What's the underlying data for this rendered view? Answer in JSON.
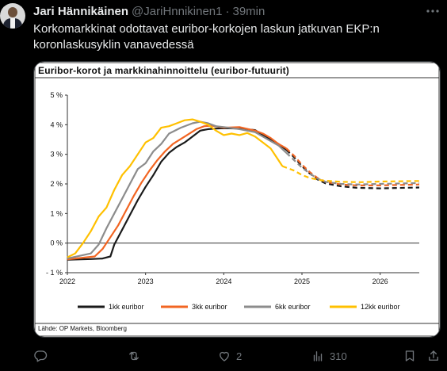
{
  "tweet": {
    "author_name": "Jari Hännikäinen",
    "handle": "@JariHnnikinen1",
    "separator": "·",
    "time": "39min",
    "more_icon": "more-dots-icon",
    "text": "Korkomarkkinat odottavat euribor-korkojen laskun jatkuvan EKP:n koronlaskusyklin vanavedessä"
  },
  "chart_card": {
    "title": "Euribor-korot ja markkinahinnoittelu (euribor-futuurit)",
    "source": "Lähde: OP Markets, Bloomberg"
  },
  "chart_data": {
    "type": "line",
    "title": "Euribor-korot ja markkinahinnoittelu (euribor-futuurit)",
    "xlabel": "",
    "ylabel": "",
    "ylim": [
      -1,
      5
    ],
    "xlim": [
      2022.0,
      2026.5
    ],
    "x_ticks": [
      2022,
      2023,
      2024,
      2025,
      2026
    ],
    "x_tick_labels": [
      "2022",
      "2023",
      "2024",
      "2025",
      "2026"
    ],
    "y_ticks": [
      -1,
      0,
      1,
      2,
      3,
      4,
      5
    ],
    "y_tick_labels": [
      "- 1 %",
      "0 %",
      "1 %",
      "2 %",
      "3 %",
      "4 %",
      "5 %"
    ],
    "grid": false,
    "legend_position": "bottom",
    "forecast_style": "dashed",
    "series": [
      {
        "name": "1kk euribor",
        "color": "#1a1a1a",
        "actual": [
          [
            2022.0,
            -0.56
          ],
          [
            2022.3,
            -0.54
          ],
          [
            2022.45,
            -0.52
          ],
          [
            2022.55,
            -0.45
          ],
          [
            2022.6,
            -0.05
          ],
          [
            2022.7,
            0.45
          ],
          [
            2022.8,
            0.95
          ],
          [
            2022.9,
            1.45
          ],
          [
            2023.0,
            1.9
          ],
          [
            2023.1,
            2.3
          ],
          [
            2023.2,
            2.75
          ],
          [
            2023.3,
            3.05
          ],
          [
            2023.4,
            3.25
          ],
          [
            2023.5,
            3.4
          ],
          [
            2023.6,
            3.6
          ],
          [
            2023.7,
            3.8
          ],
          [
            2023.8,
            3.85
          ],
          [
            2023.9,
            3.87
          ],
          [
            2024.0,
            3.88
          ],
          [
            2024.2,
            3.87
          ],
          [
            2024.4,
            3.82
          ],
          [
            2024.5,
            3.65
          ],
          [
            2024.6,
            3.5
          ],
          [
            2024.7,
            3.35
          ],
          [
            2024.8,
            3.15
          ]
        ],
        "forecast": [
          [
            2024.8,
            3.15
          ],
          [
            2024.9,
            2.9
          ],
          [
            2025.0,
            2.6
          ],
          [
            2025.1,
            2.35
          ],
          [
            2025.2,
            2.15
          ],
          [
            2025.3,
            2.02
          ],
          [
            2025.5,
            1.92
          ],
          [
            2025.7,
            1.87
          ],
          [
            2026.0,
            1.85
          ],
          [
            2026.5,
            1.88
          ]
        ]
      },
      {
        "name": "3kk euribor",
        "color": "#f26522",
        "actual": [
          [
            2022.0,
            -0.55
          ],
          [
            2022.35,
            -0.45
          ],
          [
            2022.45,
            -0.2
          ],
          [
            2022.55,
            0.2
          ],
          [
            2022.65,
            0.6
          ],
          [
            2022.75,
            1.1
          ],
          [
            2022.85,
            1.6
          ],
          [
            2022.95,
            2.05
          ],
          [
            2023.05,
            2.45
          ],
          [
            2023.15,
            2.8
          ],
          [
            2023.25,
            3.1
          ],
          [
            2023.35,
            3.35
          ],
          [
            2023.5,
            3.6
          ],
          [
            2023.65,
            3.85
          ],
          [
            2023.75,
            3.95
          ],
          [
            2023.85,
            3.97
          ],
          [
            2024.0,
            3.9
          ],
          [
            2024.2,
            3.92
          ],
          [
            2024.4,
            3.8
          ],
          [
            2024.5,
            3.7
          ],
          [
            2024.6,
            3.55
          ],
          [
            2024.7,
            3.35
          ],
          [
            2024.8,
            3.2
          ]
        ],
        "forecast": [
          [
            2024.8,
            3.2
          ],
          [
            2024.9,
            2.95
          ],
          [
            2025.0,
            2.65
          ],
          [
            2025.1,
            2.4
          ],
          [
            2025.2,
            2.2
          ],
          [
            2025.3,
            2.07
          ],
          [
            2025.5,
            1.98
          ],
          [
            2025.7,
            1.95
          ],
          [
            2026.0,
            1.95
          ],
          [
            2026.5,
            1.98
          ]
        ]
      },
      {
        "name": "6kk euribor",
        "color": "#8c8c8c",
        "actual": [
          [
            2022.0,
            -0.52
          ],
          [
            2022.3,
            -0.35
          ],
          [
            2022.4,
            -0.05
          ],
          [
            2022.5,
            0.5
          ],
          [
            2022.6,
            1.0
          ],
          [
            2022.7,
            1.5
          ],
          [
            2022.8,
            2.0
          ],
          [
            2022.9,
            2.5
          ],
          [
            2023.0,
            2.7
          ],
          [
            2023.1,
            3.1
          ],
          [
            2023.2,
            3.35
          ],
          [
            2023.3,
            3.7
          ],
          [
            2023.45,
            3.9
          ],
          [
            2023.6,
            4.05
          ],
          [
            2023.7,
            4.1
          ],
          [
            2023.8,
            4.05
          ],
          [
            2023.9,
            3.95
          ],
          [
            2024.0,
            3.92
          ],
          [
            2024.2,
            3.85
          ],
          [
            2024.4,
            3.75
          ],
          [
            2024.5,
            3.6
          ],
          [
            2024.6,
            3.45
          ],
          [
            2024.7,
            3.3
          ],
          [
            2024.8,
            3.05
          ]
        ],
        "forecast": [
          [
            2024.8,
            3.05
          ],
          [
            2024.9,
            2.8
          ],
          [
            2025.0,
            2.55
          ],
          [
            2025.1,
            2.35
          ],
          [
            2025.2,
            2.18
          ],
          [
            2025.3,
            2.07
          ],
          [
            2025.5,
            2.0
          ],
          [
            2025.7,
            1.98
          ],
          [
            2026.0,
            2.0
          ],
          [
            2026.5,
            2.03
          ]
        ]
      },
      {
        "name": "12kk euribor",
        "color": "#ffc000",
        "actual": [
          [
            2022.0,
            -0.48
          ],
          [
            2022.1,
            -0.35
          ],
          [
            2022.2,
            0.0
          ],
          [
            2022.3,
            0.4
          ],
          [
            2022.4,
            0.9
          ],
          [
            2022.5,
            1.2
          ],
          [
            2022.6,
            1.8
          ],
          [
            2022.7,
            2.3
          ],
          [
            2022.8,
            2.6
          ],
          [
            2022.9,
            3.0
          ],
          [
            2023.0,
            3.4
          ],
          [
            2023.1,
            3.55
          ],
          [
            2023.2,
            3.9
          ],
          [
            2023.3,
            3.95
          ],
          [
            2023.4,
            4.05
          ],
          [
            2023.5,
            4.15
          ],
          [
            2023.6,
            4.18
          ],
          [
            2023.7,
            4.1
          ],
          [
            2023.8,
            4.0
          ],
          [
            2023.9,
            3.8
          ],
          [
            2024.0,
            3.65
          ],
          [
            2024.1,
            3.7
          ],
          [
            2024.2,
            3.65
          ],
          [
            2024.3,
            3.72
          ],
          [
            2024.4,
            3.6
          ],
          [
            2024.5,
            3.4
          ],
          [
            2024.6,
            3.2
          ],
          [
            2024.7,
            2.8
          ],
          [
            2024.75,
            2.6
          ]
        ],
        "forecast": [
          [
            2024.75,
            2.6
          ],
          [
            2024.9,
            2.45
          ],
          [
            2025.0,
            2.3
          ],
          [
            2025.1,
            2.2
          ],
          [
            2025.25,
            2.12
          ],
          [
            2025.5,
            2.07
          ],
          [
            2025.75,
            2.06
          ],
          [
            2026.0,
            2.08
          ],
          [
            2026.5,
            2.1
          ]
        ]
      }
    ]
  },
  "actions": {
    "reply": {
      "icon": "reply-icon",
      "count": ""
    },
    "retweet": {
      "icon": "retweet-icon",
      "count": ""
    },
    "like": {
      "icon": "heart-icon",
      "count": "2"
    },
    "views": {
      "icon": "views-icon",
      "count": "310"
    },
    "bookmark": {
      "icon": "bookmark-icon",
      "count": ""
    },
    "share": {
      "icon": "share-icon",
      "count": ""
    }
  }
}
